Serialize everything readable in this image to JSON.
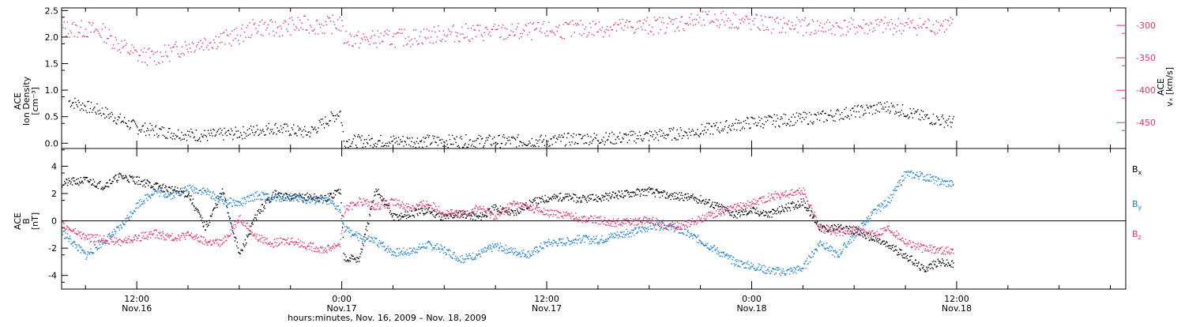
{
  "x_axis": {
    "title": "hours:minutes, Nov. 16, 2009 – Nov. 18, 2009",
    "ticks": [
      {
        "time": "12:00",
        "date": "Nov.16"
      },
      {
        "time": "0:00",
        "date": "Nov.17"
      },
      {
        "time": "12:00",
        "date": "Nov.17"
      },
      {
        "time": "0:00",
        "date": "Nov.18"
      },
      {
        "time": "12:00",
        "date": "Nov.18"
      }
    ]
  },
  "colors": {
    "density": "#000000",
    "vx": "#e8336a",
    "bx": "#000000",
    "by": "#1a7fd6",
    "bz": "#e8336a"
  },
  "chart_data": [
    {
      "type": "scatter",
      "panel": "top",
      "ylabel": "ACE Ion Density [cm⁻³]",
      "ylabel_lines": [
        "ACE",
        "Ion Density",
        "[cm⁻³]"
      ],
      "ylim": [
        -0.1,
        2.55
      ],
      "yticks": [
        0.0,
        0.5,
        1.0,
        1.5,
        2.0,
        2.5
      ],
      "ytick_labels": [
        "0.0",
        "0.5",
        "1.0",
        "1.5",
        "2.0",
        "2.5"
      ],
      "y2label": "ACE vₓ [km/s]",
      "y2label_lines": [
        "ACE",
        "vₓ [km/s]"
      ],
      "y2lim": [
        -490,
        -273
      ],
      "y2ticks": [
        -300,
        -350,
        -400,
        -450
      ],
      "y2tick_labels": [
        "-300",
        "-350",
        "-400",
        "-450"
      ],
      "xlim_hours": [
        7.6,
        69.9
      ],
      "x_unit": "hours since Nov 16 00:00",
      "series": [
        {
          "name": "Ion Density",
          "axis": "left",
          "x": [
            8.0,
            10.0,
            12.0,
            14.0,
            16.0,
            18.0,
            20.0,
            22.0,
            23.9,
            24.1,
            26.0,
            28.0,
            30.0,
            32.0,
            34.0,
            36.0,
            38.0,
            40.0,
            42.0,
            44.0,
            46.0,
            48.0,
            50.0,
            52.0,
            54.0,
            56.0,
            58.0,
            59.8
          ],
          "y": [
            0.8,
            0.6,
            0.3,
            0.2,
            0.15,
            0.2,
            0.3,
            0.2,
            0.6,
            0.05,
            0.05,
            0.05,
            0.05,
            0.05,
            0.05,
            0.05,
            0.1,
            0.1,
            0.15,
            0.2,
            0.3,
            0.4,
            0.45,
            0.5,
            0.6,
            0.7,
            0.5,
            0.4
          ]
        },
        {
          "name": "vₓ",
          "axis": "right",
          "x": [
            7.6,
            9.0,
            10.0,
            11.0,
            12.0,
            13.0,
            14.0,
            15.0,
            16.0,
            17.0,
            18.0,
            19.0,
            20.0,
            21.0,
            22.0,
            23.0,
            23.9,
            24.1,
            25.0,
            26.0,
            28.0,
            30.0,
            32.0,
            34.0,
            36.0,
            38.0,
            40.0,
            42.0,
            44.0,
            45.5,
            46.5,
            48.0,
            50.0,
            52.0,
            54.0,
            56.0,
            58.0,
            59.8
          ],
          "y": [
            -305,
            -305,
            -310,
            -330,
            -345,
            -348,
            -340,
            -330,
            -325,
            -320,
            -315,
            -300,
            -305,
            -300,
            -298,
            -300,
            -295,
            -318,
            -322,
            -320,
            -318,
            -312,
            -310,
            -310,
            -307,
            -305,
            -302,
            -300,
            -295,
            -290,
            -290,
            -295,
            -300,
            -302,
            -302,
            -300,
            -300,
            -298
          ]
        }
      ]
    },
    {
      "type": "scatter",
      "panel": "bottom",
      "ylabel": "ACE B [nT]",
      "ylabel_lines": [
        "ACE",
        "B",
        "[nT]"
      ],
      "ylim": [
        -5,
        5.3
      ],
      "yticks": [
        4,
        2,
        0,
        -2,
        -4
      ],
      "ytick_labels": [
        "4",
        "2",
        "0",
        "-2",
        "-4"
      ],
      "zero_line": true,
      "xlim_hours": [
        7.6,
        69.9
      ],
      "x_unit": "hours since Nov 16 00:00",
      "series": [
        {
          "name": "Bx",
          "x": [
            7.6,
            9.0,
            10.0,
            11.0,
            12.0,
            13.0,
            14.0,
            15.0,
            16.0,
            17.0,
            18.0,
            19.0,
            20.0,
            21.0,
            22.0,
            23.0,
            23.9,
            24.1,
            25.0,
            26.0,
            27.0,
            28.0,
            29.0,
            30.0,
            31.0,
            32.0,
            33.0,
            34.0,
            35.0,
            36.0,
            37.0,
            38.0,
            39.0,
            40.0,
            41.0,
            42.0,
            43.0,
            44.0,
            45.0,
            46.0,
            47.0,
            48.0,
            49.0,
            50.0,
            51.0,
            52.0,
            53.0,
            54.0,
            55.0,
            56.0,
            57.0,
            58.0,
            59.0,
            59.8
          ],
          "y": [
            2.8,
            3.0,
            2.6,
            3.3,
            3.0,
            2.6,
            2.3,
            2.0,
            -0.5,
            2.2,
            -2.5,
            0.5,
            2.0,
            1.7,
            1.8,
            1.6,
            2.3,
            -2.6,
            -2.8,
            2.4,
            0.3,
            0.5,
            0.8,
            0.3,
            0.6,
            0.3,
            1.0,
            0.6,
            1.3,
            1.7,
            1.8,
            1.6,
            1.7,
            1.9,
            2.1,
            2.2,
            1.9,
            1.8,
            1.6,
            1.1,
            0.5,
            0.8,
            0.5,
            1.0,
            1.4,
            -0.5,
            -0.5,
            -0.7,
            -1.2,
            -1.8,
            -2.5,
            -3.5,
            -3.0,
            -3.2
          ]
        },
        {
          "name": "By",
          "x": [
            7.6,
            9.0,
            10.0,
            11.0,
            12.0,
            13.0,
            14.0,
            15.0,
            16.0,
            17.0,
            18.0,
            19.0,
            20.0,
            21.0,
            22.0,
            23.0,
            23.9,
            24.1,
            25.0,
            26.0,
            27.0,
            28.0,
            29.0,
            30.0,
            31.0,
            32.0,
            33.0,
            34.0,
            35.0,
            36.0,
            37.0,
            38.0,
            39.0,
            40.0,
            41.0,
            42.0,
            43.0,
            44.0,
            45.0,
            46.0,
            47.0,
            48.0,
            49.0,
            50.0,
            51.0,
            52.0,
            53.0,
            54.0,
            55.0,
            56.0,
            57.0,
            58.0,
            59.0,
            59.8
          ],
          "y": [
            -0.8,
            -2.5,
            -1.5,
            -0.5,
            1.2,
            2.2,
            1.9,
            2.4,
            2.2,
            1.5,
            1.3,
            1.9,
            1.7,
            1.8,
            1.5,
            1.6,
            0.8,
            -0.5,
            -1.2,
            -1.5,
            -2.3,
            -2.2,
            -1.7,
            -2.1,
            -2.8,
            -2.4,
            -1.8,
            -2.2,
            -2.4,
            -1.6,
            -1.5,
            -1.3,
            -1.4,
            -1.0,
            -0.8,
            -0.4,
            -0.3,
            -0.8,
            -1.4,
            -2.2,
            -3.0,
            -3.3,
            -3.6,
            -3.7,
            -3.4,
            -1.5,
            -2.5,
            -1.0,
            0.5,
            1.5,
            3.5,
            3.3,
            2.9,
            2.7
          ]
        },
        {
          "name": "Bz",
          "x": [
            7.6,
            9.0,
            10.0,
            11.0,
            12.0,
            13.0,
            14.0,
            15.0,
            16.0,
            17.0,
            18.0,
            19.0,
            20.0,
            21.0,
            22.0,
            23.0,
            23.9,
            24.1,
            25.0,
            26.0,
            27.0,
            28.0,
            29.0,
            30.0,
            31.0,
            32.0,
            33.0,
            34.0,
            35.0,
            36.0,
            37.0,
            38.0,
            39.0,
            40.0,
            41.0,
            42.0,
            43.0,
            44.0,
            45.0,
            46.0,
            47.0,
            48.0,
            49.0,
            50.0,
            51.0,
            52.0,
            53.0,
            54.0,
            55.0,
            56.0,
            57.0,
            58.0,
            59.0,
            59.8
          ],
          "y": [
            -0.3,
            -1.2,
            -1.3,
            -1.5,
            -1.2,
            -0.9,
            -1.2,
            -1.0,
            -1.5,
            -1.6,
            0.3,
            -1.2,
            -1.6,
            -1.4,
            -1.8,
            -2.1,
            -1.6,
            0.8,
            1.5,
            1.1,
            1.4,
            1.0,
            1.3,
            0.6,
            0.5,
            1.0,
            0.3,
            1.3,
            1.0,
            0.6,
            0.5,
            0.2,
            0.1,
            -0.1,
            0.0,
            0.1,
            -0.3,
            -0.3,
            0.2,
            0.6,
            1.0,
            1.3,
            1.8,
            2.0,
            2.2,
            -0.5,
            -0.8,
            -0.6,
            -1.0,
            -0.5,
            -1.5,
            -2.0,
            -2.1,
            -2.2
          ]
        }
      ]
    }
  ],
  "legend": [
    {
      "label": "B",
      "sub": "x",
      "color": "#000000"
    },
    {
      "label": "B",
      "sub": "y",
      "color": "#1a7fd6"
    },
    {
      "label": "B",
      "sub": "z",
      "color": "#e8336a"
    }
  ]
}
